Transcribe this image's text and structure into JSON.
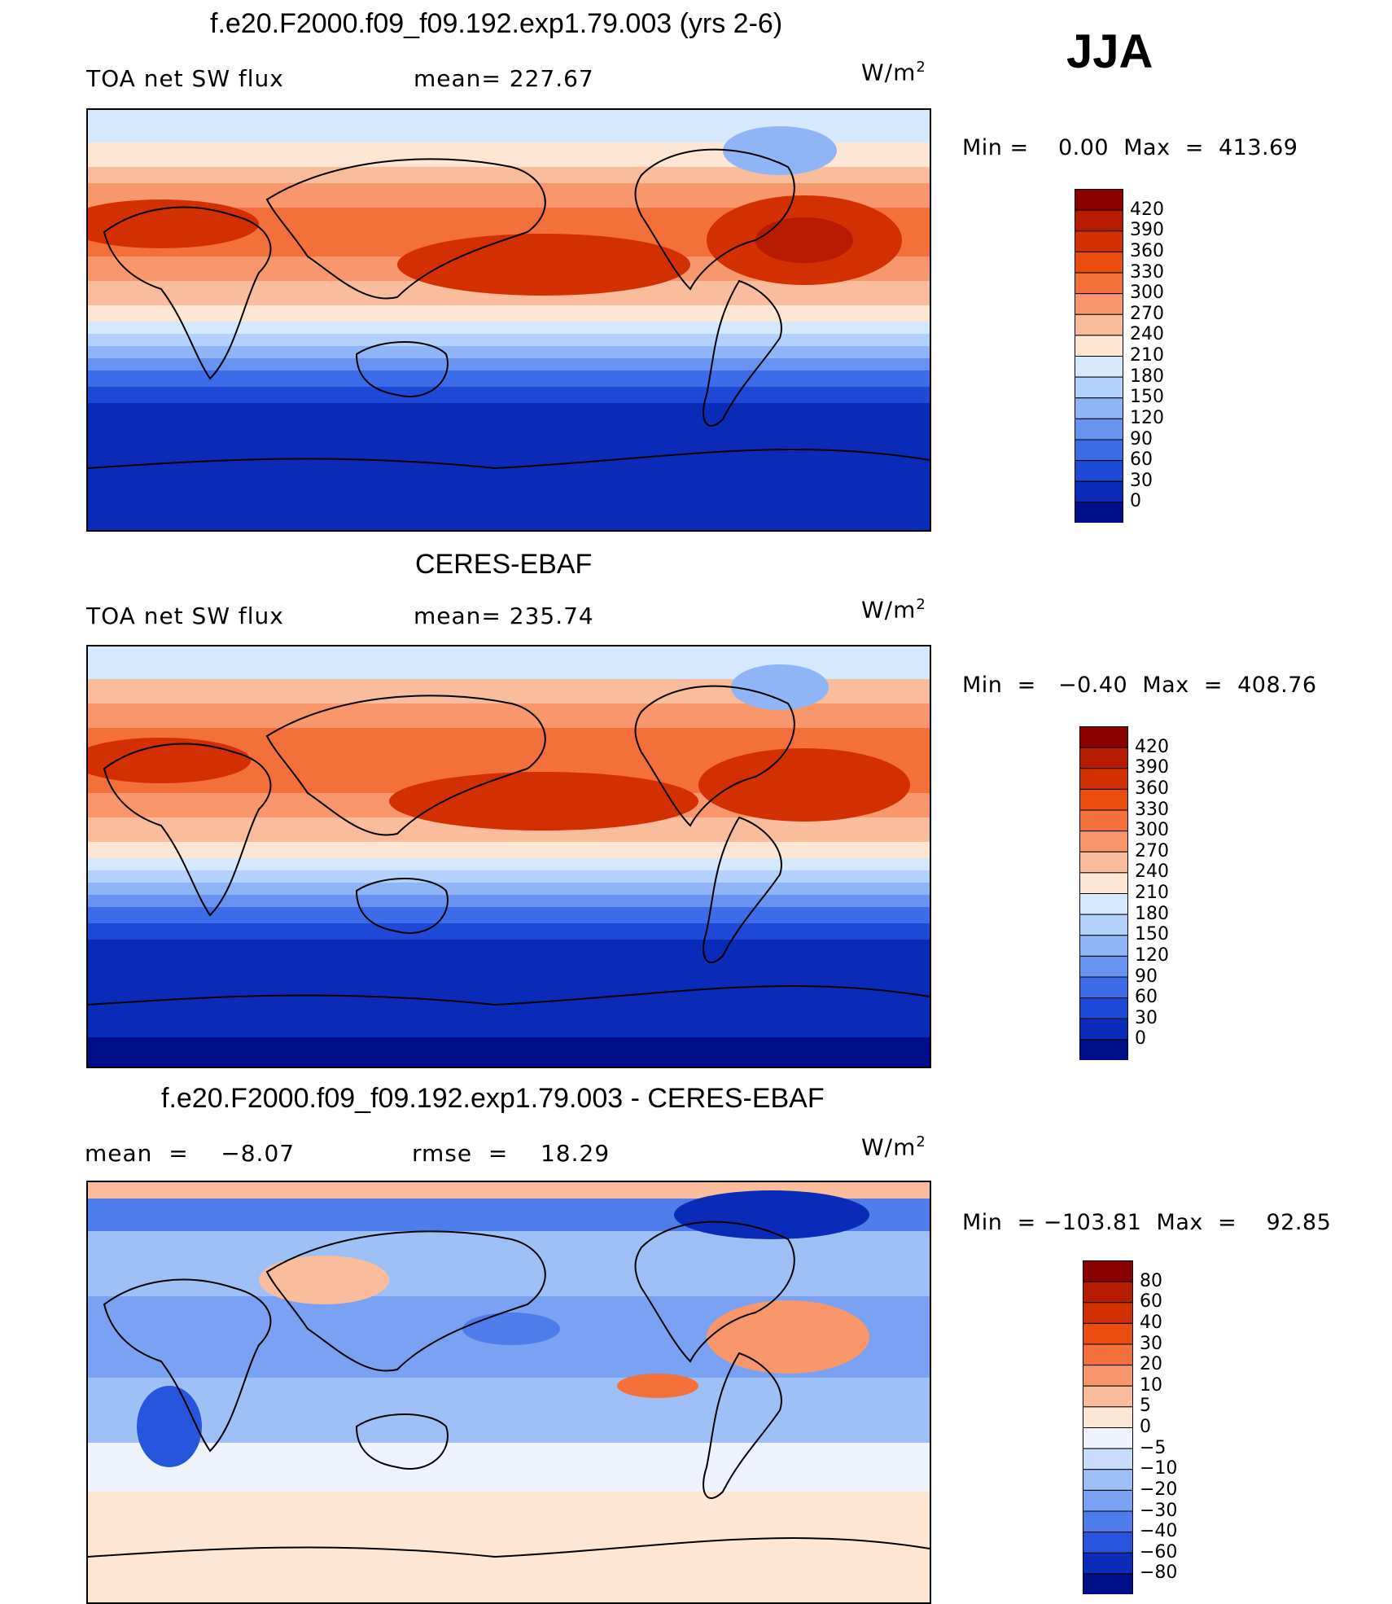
{
  "season": "JJA",
  "panels": [
    {
      "title": "f.e20.F2000.f09_f09.192.exp1.79.003 (yrs 2-6)",
      "left_label": "TOA net SW flux",
      "mid_label": "mean= 227.67",
      "units_base": "W/m",
      "units_exp": "2",
      "minmax": "Min =    0.00  Max  =  413.69",
      "levels": [
        "420",
        "390",
        "360",
        "330",
        "300",
        "270",
        "240",
        "210",
        "180",
        "150",
        "120",
        "90",
        "60",
        "30",
        "0"
      ],
      "colors": [
        "#8b0000",
        "#b71c00",
        "#d23000",
        "#ea4d10",
        "#f4703a",
        "#f7976b",
        "#f9bd9d",
        "#fde6d4",
        "#d6e8fb",
        "#b4d1fb",
        "#8fb5f6",
        "#6893f0",
        "#3c6ce8",
        "#1e48d6",
        "#0a2ab8",
        "#000e8a"
      ]
    },
    {
      "title": "CERES-EBAF",
      "left_label": "TOA net SW flux",
      "mid_label": "mean= 235.74",
      "units_base": "W/m",
      "units_exp": "2",
      "minmax": "Min  =   −0.40  Max  =  408.76",
      "levels": [
        "420",
        "390",
        "360",
        "330",
        "300",
        "270",
        "240",
        "210",
        "180",
        "150",
        "120",
        "90",
        "60",
        "30",
        "0"
      ],
      "colors": [
        "#8b0000",
        "#b71c00",
        "#d23000",
        "#ea4d10",
        "#f4703a",
        "#f7976b",
        "#f9bd9d",
        "#fde6d4",
        "#d6e8fb",
        "#b4d1fb",
        "#8fb5f6",
        "#6893f0",
        "#3c6ce8",
        "#1e48d6",
        "#0a2ab8",
        "#000e8a"
      ]
    },
    {
      "title": "f.e20.F2000.f09_f09.192.exp1.79.003 - CERES-EBAF",
      "left_label": "mean  =    −8.07",
      "mid_label": "rmse  =    18.29",
      "units_base": "W/m",
      "units_exp": "2",
      "minmax": "Min  = −103.81  Max  =    92.85",
      "levels": [
        "80",
        "60",
        "40",
        "30",
        "20",
        "10",
        "5",
        "0",
        "−5",
        "−10",
        "−20",
        "−30",
        "−40",
        "−60",
        "−80"
      ],
      "colors": [
        "#8b0000",
        "#b71c00",
        "#d23000",
        "#ea4d10",
        "#f4703a",
        "#f7976b",
        "#f9bd9d",
        "#fde6d4",
        "#eef3fd",
        "#c9dcfb",
        "#9fc0f7",
        "#7aa1f2",
        "#4f7ceb",
        "#2756dd",
        "#0a2ab8",
        "#000e8a"
      ]
    }
  ],
  "chart_data": [
    {
      "type": "heatmap",
      "title": "f.e20.F2000.f09_f09.192.exp1.79.003 (yrs 2-6)",
      "variable": "TOA net SW flux",
      "units": "W/m2",
      "mean": 227.67,
      "min": 0.0,
      "max": 413.69,
      "contour_levels": [
        0,
        30,
        60,
        90,
        120,
        150,
        180,
        210,
        240,
        270,
        300,
        330,
        360,
        390,
        420
      ]
    },
    {
      "type": "heatmap",
      "title": "CERES-EBAF",
      "variable": "TOA net SW flux",
      "units": "W/m2",
      "mean": 235.74,
      "min": -0.4,
      "max": 408.76,
      "contour_levels": [
        0,
        30,
        60,
        90,
        120,
        150,
        180,
        210,
        240,
        270,
        300,
        330,
        360,
        390,
        420
      ]
    },
    {
      "type": "heatmap",
      "title": "f.e20.F2000.f09_f09.192.exp1.79.003 - CERES-EBAF",
      "units": "W/m2",
      "mean": -8.07,
      "rmse": 18.29,
      "min": -103.81,
      "max": 92.85,
      "contour_levels": [
        -80,
        -60,
        -40,
        -30,
        -20,
        -10,
        -5,
        0,
        5,
        10,
        20,
        30,
        40,
        60,
        80
      ]
    }
  ]
}
